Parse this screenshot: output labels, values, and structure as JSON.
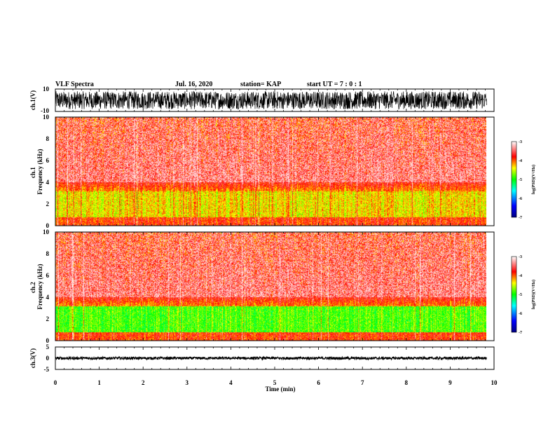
{
  "header": {
    "title": "VLF Spectra",
    "date": "Jul. 16, 2020",
    "station": "station= KAP",
    "start": "start UT = 7 : 0 : 1"
  },
  "chart_data": [
    {
      "type": "line",
      "name": "ch1-waveform",
      "ylabel": "ch.1(V)",
      "ylim": [
        -10,
        10
      ],
      "yticks": [
        "10",
        "-10"
      ],
      "xlim": [
        0,
        10
      ],
      "x_end": 9.83,
      "amplitude_range": [
        -8,
        8
      ]
    },
    {
      "type": "heatmap",
      "name": "ch1-spectrogram",
      "ylabel": "ch.1\nFrequency (kHz)",
      "ylim": [
        0,
        10
      ],
      "yticks": [
        "0",
        "2",
        "4",
        "6",
        "8",
        "10"
      ],
      "xlim": [
        0,
        10
      ],
      "x_end": 9.83,
      "colorbar": {
        "label": "log(PSD)(V²/Hz)",
        "range": [
          -7,
          -3
        ],
        "ticks": [
          "-3",
          "-4",
          "-5",
          "-6",
          "-7"
        ]
      }
    },
    {
      "type": "heatmap",
      "name": "ch2-spectrogram",
      "ylabel": "ch.2\nFrequency (kHz)",
      "ylim": [
        0,
        10
      ],
      "yticks": [
        "0",
        "2",
        "4",
        "6",
        "8",
        "10"
      ],
      "xlim": [
        0,
        10
      ],
      "x_end": 9.83,
      "colorbar": {
        "label": "log(PSD)(V²/Hz)",
        "range": [
          -7,
          -3
        ],
        "ticks": [
          "-3",
          "-4",
          "-5",
          "-6",
          "-7"
        ]
      }
    },
    {
      "type": "line",
      "name": "ch3-waveform",
      "ylabel": "ch.3(V)",
      "ylim": [
        -5,
        5
      ],
      "yticks": [
        "5",
        "0",
        "-5"
      ],
      "xlim": [
        0,
        10
      ],
      "x_end": 9.83,
      "amplitude_range": [
        -0.6,
        0.6
      ]
    }
  ],
  "x_axis": {
    "label": "Time (min)",
    "ticks": [
      "0",
      "1",
      "2",
      "3",
      "4",
      "5",
      "6",
      "7",
      "8",
      "9",
      "10"
    ]
  },
  "colors": {
    "colormap": [
      "#000080",
      "#0000ff",
      "#00ffff",
      "#00ff00",
      "#ffff00",
      "#ff0000",
      "#ffffff"
    ]
  }
}
